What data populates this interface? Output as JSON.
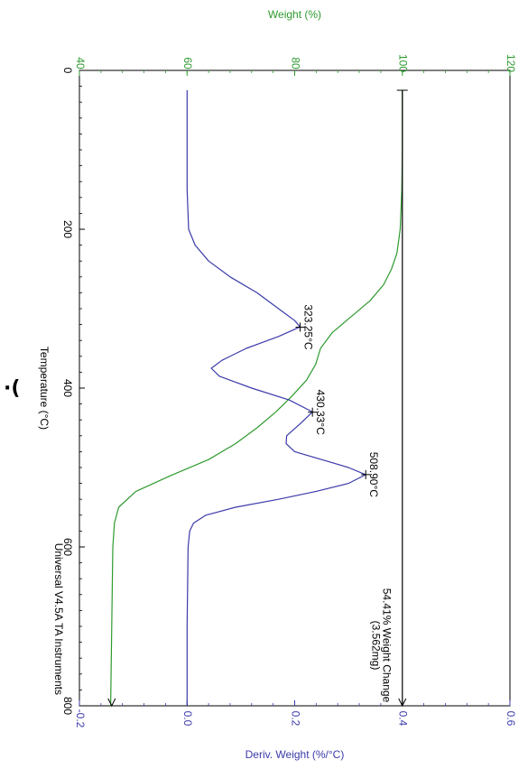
{
  "page_mark": "·(",
  "chart_data": {
    "type": "line",
    "orientation": "rotated-90-clockwise",
    "instrument_note": "Universal V4.5A TA Instruments",
    "xlabel": "Temperature (°C)",
    "x_ticks": [
      "0",
      "200",
      "400",
      "600",
      "800"
    ],
    "xlim": [
      0,
      800
    ],
    "y_left": {
      "label": "Weight (%)",
      "ticks": [
        "40",
        "60",
        "80",
        "100",
        "120"
      ],
      "ylim": [
        40,
        120
      ],
      "color": "#2e9a2e"
    },
    "y_right": {
      "label": "Deriv. Weight (%/°C)",
      "ticks": [
        "-0.2",
        "0.0",
        "0.2",
        "0.4",
        "0.6"
      ],
      "ylim": [
        -0.2,
        0.6
      ],
      "color": "#3a3aaa"
    },
    "series": [
      {
        "axis": "y_left",
        "color": "#2e9a2e",
        "x": [
          25,
          100,
          150,
          200,
          230,
          250,
          270,
          290,
          310,
          330,
          350,
          370,
          390,
          410,
          430,
          450,
          470,
          490,
          510,
          530,
          550,
          570,
          600,
          700,
          800
        ],
        "y": [
          100,
          100,
          99.9,
          99.6,
          99.0,
          98.0,
          96.5,
          94.0,
          90.5,
          87.0,
          84.8,
          83.9,
          82.2,
          79.5,
          76.5,
          73.0,
          69.0,
          64.0,
          57.0,
          50.5,
          47.3,
          46.5,
          46.2,
          46.0,
          45.8
        ]
      },
      {
        "axis": "y_right",
        "color": "#3a3aaa",
        "x": [
          25,
          100,
          150,
          200,
          220,
          240,
          260,
          280,
          300,
          315,
          323,
          335,
          350,
          365,
          375,
          385,
          400,
          415,
          430,
          445,
          460,
          470,
          480,
          490,
          500,
          509,
          520,
          530,
          540,
          550,
          560,
          570,
          580,
          600,
          700,
          800
        ],
        "y": [
          0.0,
          0.0,
          0.0,
          0.003,
          0.015,
          0.04,
          0.08,
          0.13,
          0.17,
          0.2,
          0.21,
          0.17,
          0.11,
          0.065,
          0.045,
          0.06,
          0.12,
          0.19,
          0.233,
          0.21,
          0.185,
          0.184,
          0.2,
          0.25,
          0.3,
          0.332,
          0.3,
          0.24,
          0.17,
          0.09,
          0.035,
          0.012,
          0.005,
          0.002,
          0.0,
          0.0
        ]
      },
      {
        "axis": "y_right",
        "color": "#000000",
        "x": [
          25,
          800
        ],
        "y": [
          0.4,
          0.4
        ]
      }
    ],
    "annotations": [
      {
        "text": "323.25°C",
        "x": 323.25,
        "y": 0.21,
        "axis": "y_right"
      },
      {
        "text": "430.33°C",
        "x": 430.33,
        "y": 0.233,
        "axis": "y_right"
      },
      {
        "text": "508.90°C",
        "x": 508.9,
        "y": 0.332,
        "axis": "y_right"
      },
      {
        "text": "54.41% Weight Change",
        "x": 700,
        "y": 0.4,
        "axis": "y_right"
      },
      {
        "text": "(3.562mg)",
        "x": 700,
        "y": 0.4,
        "axis": "y_right"
      }
    ],
    "grid": false
  }
}
